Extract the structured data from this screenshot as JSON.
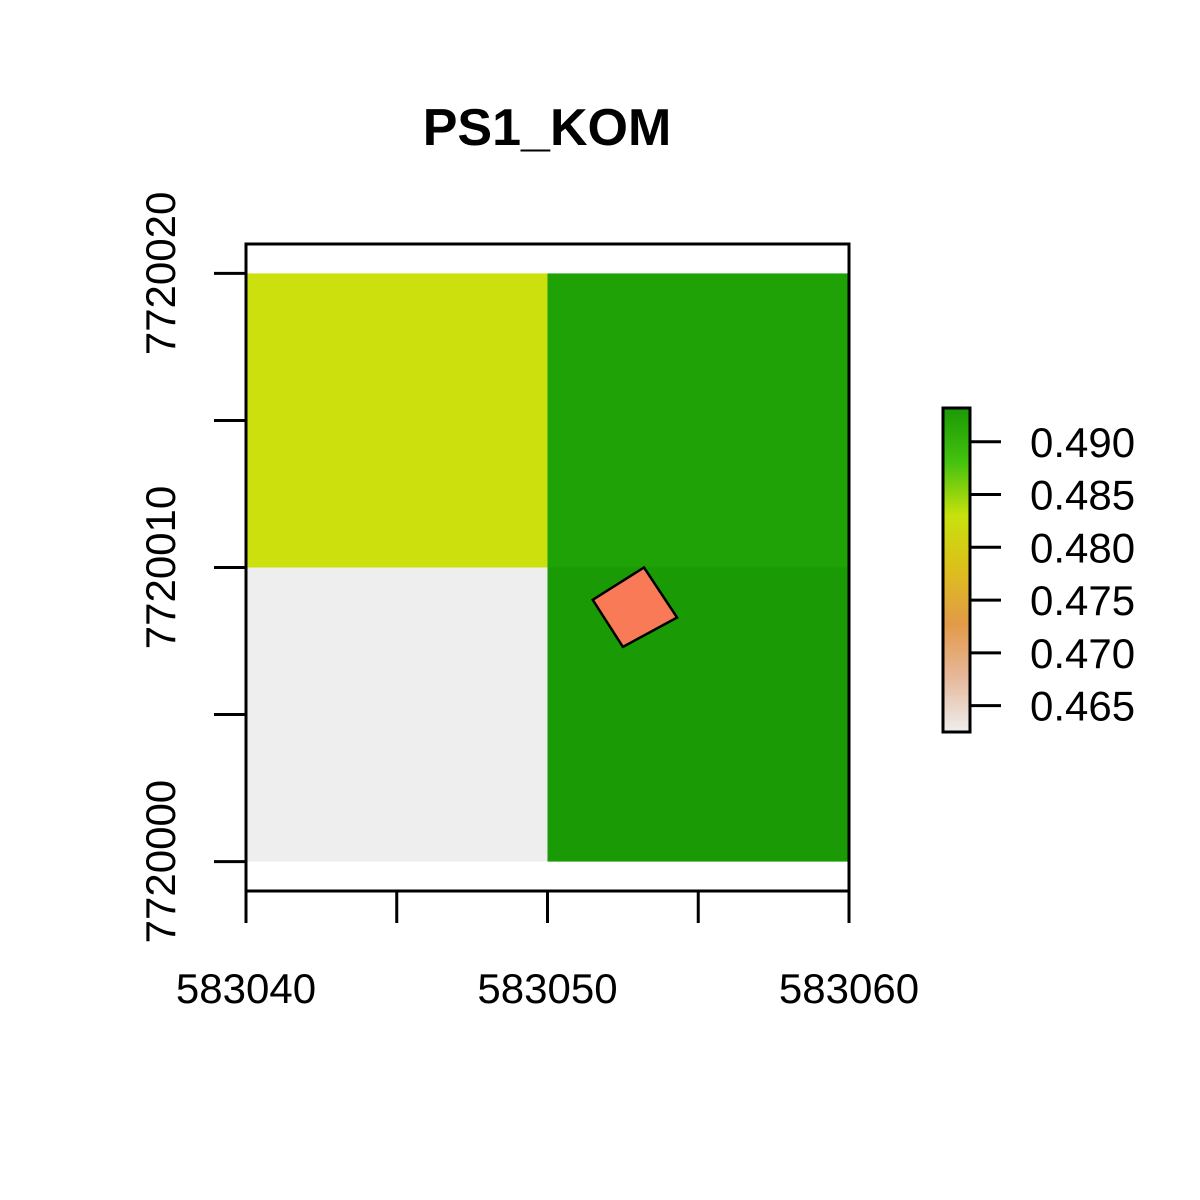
{
  "chart_data": {
    "type": "heatmap",
    "title": "PS1_KOM",
    "xlim": [
      583040,
      583060
    ],
    "ylim": [
      7719999,
      7720021
    ],
    "x_ticks": [
      583040,
      583045,
      583050,
      583055,
      583060
    ],
    "x_tick_labels": [
      "583040",
      "583050",
      "583060"
    ],
    "x_tick_label_values": [
      583040,
      583050,
      583060
    ],
    "y_ticks": [
      7720000,
      7720005,
      7720010,
      7720015,
      7720020
    ],
    "y_tick_labels": [
      "7720000",
      "7720010",
      "7720020"
    ],
    "y_tick_label_values": [
      7720000,
      7720010,
      7720020
    ],
    "cells": [
      {
        "x0": 583040,
        "x1": 583050,
        "y0": 7720010,
        "y1": 7720020,
        "value": 0.4795,
        "color": "#cbe00c"
      },
      {
        "x0": 583050,
        "x1": 583060,
        "y0": 7720010,
        "y1": 7720020,
        "value": 0.4925,
        "color": "#1ea206"
      },
      {
        "x0": 583040,
        "x1": 583050,
        "y0": 7720000,
        "y1": 7720010,
        "value": 0.4625,
        "color": "#eeeeee"
      },
      {
        "x0": 583050,
        "x1": 583060,
        "y0": 7720000,
        "y1": 7720010,
        "value": 0.493,
        "color": "#1a9a05"
      }
    ],
    "polygon": {
      "fill": "#f97a56",
      "stroke": "#000000",
      "points": [
        [
          583051.5,
          7720008.9
        ],
        [
          583053.2,
          7720010.0
        ],
        [
          583054.3,
          7720008.3
        ],
        [
          583052.5,
          7720007.3
        ]
      ]
    },
    "legend": {
      "position": "right",
      "min": 0.4625,
      "max": 0.4932,
      "ticks": [
        0.465,
        0.47,
        0.475,
        0.48,
        0.485,
        0.49
      ],
      "tick_labels": [
        "0.465",
        "0.470",
        "0.475",
        "0.480",
        "0.485",
        "0.490"
      ],
      "colors": [
        "#eeeeee",
        "#e6b89c",
        "#e29a48",
        "#dcbf1c",
        "#c8e10c",
        "#44c20e",
        "#1a9a05"
      ]
    }
  }
}
